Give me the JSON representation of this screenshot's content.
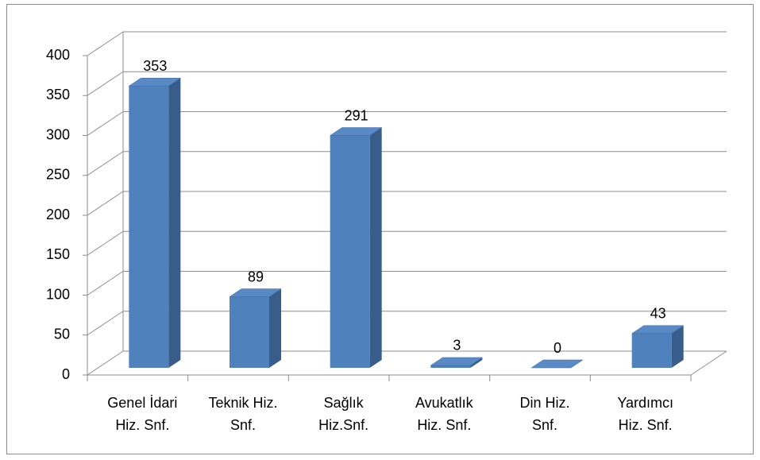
{
  "chart_data": {
    "type": "bar3d",
    "categories": [
      [
        "Genel İdari",
        "Hiz. Snf."
      ],
      [
        "Teknik Hiz.",
        "Snf."
      ],
      [
        "Sağlık",
        "Hiz.Snf."
      ],
      [
        "Avukatlık",
        "Hiz. Snf."
      ],
      [
        "Din Hiz.",
        "Snf."
      ],
      [
        "Yardımcı",
        "Hiz. Snf."
      ]
    ],
    "values": [
      353,
      89,
      291,
      3,
      0,
      43
    ],
    "color": "#4f81bd",
    "ylim": [
      0,
      400
    ],
    "yticks": [
      0,
      50,
      100,
      150,
      200,
      250,
      300,
      350,
      400
    ],
    "grid": true
  }
}
